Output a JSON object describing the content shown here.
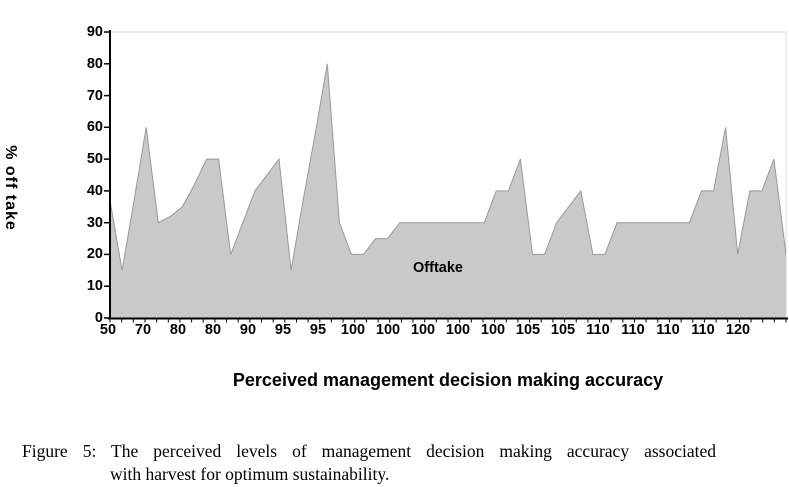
{
  "chart_data": {
    "type": "area",
    "title": "",
    "xlabel": "Perceived management decision making accuracy",
    "ylabel": "% off take",
    "series_label": "Offtake",
    "legend_position": "none",
    "grid": false,
    "ylim": [
      0,
      90
    ],
    "y_tick_labels": [
      "0",
      "10",
      "20",
      "30",
      "40",
      "50",
      "60",
      "70",
      "80",
      "90"
    ],
    "x_tick_labels": [
      "50",
      "70",
      "80",
      "80",
      "90",
      "95",
      "95",
      "100",
      "100",
      "100",
      "100",
      "100",
      "105",
      "105",
      "110",
      "110",
      "110",
      "110",
      "120"
    ],
    "values": [
      37,
      15,
      37,
      60,
      30,
      32,
      35,
      42,
      50,
      50,
      20,
      30,
      40,
      45,
      50,
      15,
      37,
      58,
      80,
      30,
      20,
      20,
      25,
      25,
      30,
      30,
      30,
      30,
      30,
      30,
      30,
      30,
      40,
      40,
      50,
      20,
      20,
      30,
      35,
      40,
      20,
      20,
      30,
      30,
      30,
      30,
      30,
      30,
      30,
      40,
      40,
      60,
      20,
      40,
      40,
      50,
      20,
      15
    ]
  },
  "caption": {
    "line1": "Figure 5: The perceived levels of management decision making accuracy associated",
    "line2": "with harvest for optimum sustainability."
  },
  "colors": {
    "area_fill": "#c9c9c9",
    "area_stroke": "#999999",
    "axis": "#000000",
    "plot_border": "#d9d9d9",
    "text": "#000000"
  }
}
